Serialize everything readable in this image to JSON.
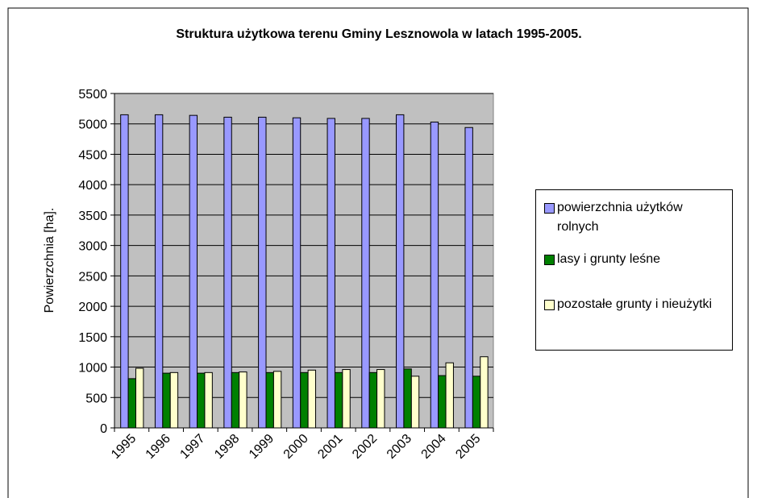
{
  "chart_data": {
    "type": "bar",
    "title": "Struktura użytkowa terenu Gminy Lesznowola w latach 1995-2005.",
    "y_label": "Powierzchnia [ha].",
    "categories": [
      "1995",
      "1996",
      "1997",
      "1998",
      "1999",
      "2000",
      "2001",
      "2002",
      "2003",
      "2004",
      "2005"
    ],
    "series": [
      {
        "name": "powierzchnia użytków rolnych",
        "color": "#9999ff",
        "values": [
          5150,
          5150,
          5140,
          5110,
          5110,
          5100,
          5090,
          5090,
          5150,
          5030,
          4940
        ]
      },
      {
        "name": "lasy i grunty leśne",
        "color": "#008000",
        "values": [
          810,
          900,
          900,
          910,
          910,
          910,
          910,
          910,
          970,
          860,
          850
        ]
      },
      {
        "name": "pozostałe grunty i nieużytki",
        "color": "#ffffcc",
        "values": [
          980,
          910,
          910,
          920,
          930,
          950,
          960,
          960,
          850,
          1070,
          1170
        ]
      }
    ],
    "ylim": [
      0,
      5500
    ],
    "yticks": [
      0,
      500,
      1000,
      1500,
      2000,
      2500,
      3000,
      3500,
      4000,
      4500,
      5000,
      5500
    ],
    "plot_background": "#c0c0c0",
    "legend": "right"
  }
}
